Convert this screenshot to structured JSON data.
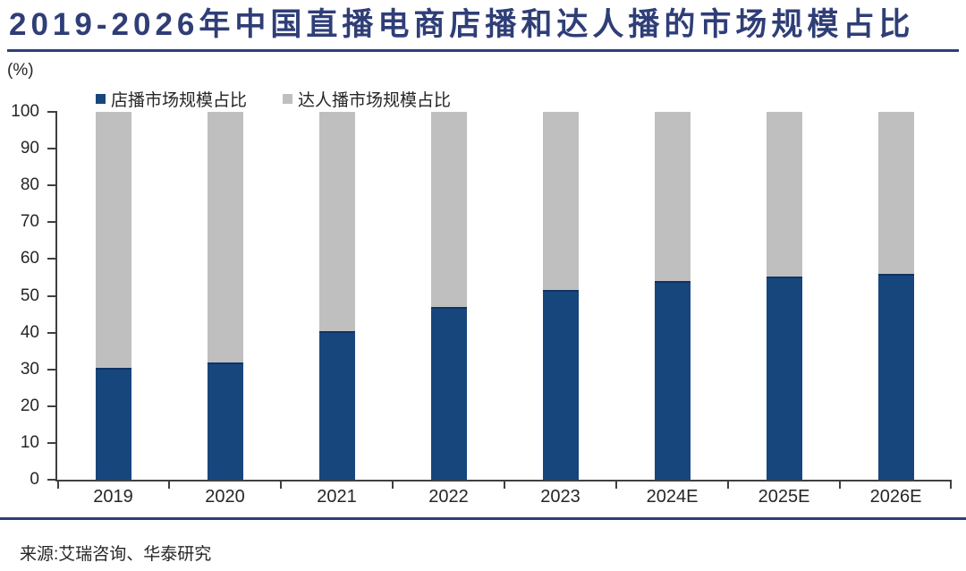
{
  "header": {
    "title": "2019-2026年中国直播电商店播和达人播的市场规模占比"
  },
  "chart": {
    "unit_label": "(%)",
    "legend": [
      {
        "label": "店播市场规模占比",
        "color": "#17467D"
      },
      {
        "label": "达人播市场规模占比",
        "color": "#BFBFBF"
      }
    ],
    "y_tick_labels": [
      "100",
      "90",
      "80",
      "70",
      "60",
      "50",
      "40",
      "30",
      "20",
      "10",
      "0"
    ]
  },
  "chart_data": {
    "type": "bar",
    "stacked": true,
    "title": "2019-2026年中国直播电商店播和达人播的市场规模占比",
    "categories": [
      "2019",
      "2020",
      "2021",
      "2022",
      "2023",
      "2024E",
      "2025E",
      "2026E"
    ],
    "series": [
      {
        "name": "店播市场规模占比",
        "color": "#17467D",
        "values": [
          30.3,
          31.8,
          40.5,
          47.0,
          51.6,
          54.0,
          55.3,
          56.0
        ]
      },
      {
        "name": "达人播市场规模占比",
        "color": "#BFBFBF",
        "values": [
          69.7,
          68.2,
          59.5,
          53.0,
          48.4,
          46.0,
          44.7,
          44.0
        ]
      }
    ],
    "ylabel": "(%)",
    "ylim": [
      0,
      100
    ],
    "y_tick_step": 10,
    "grid": false,
    "legend_position": "top"
  },
  "footer": {
    "source": "来源:艾瑞咨询、华泰研究"
  }
}
